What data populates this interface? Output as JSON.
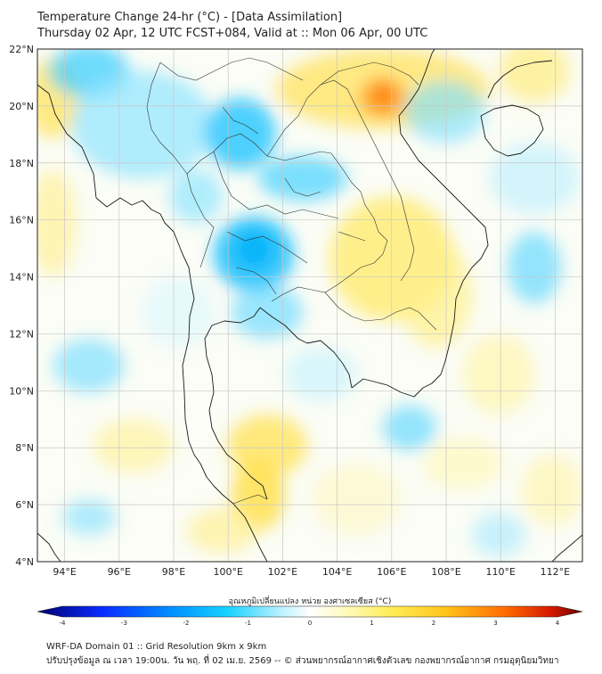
{
  "title": {
    "line1": "Temperature Change 24-hr (°C) - [Data Assimilation]",
    "line2": "Thursday 02 Apr, 12 UTC FCST+084, Valid at :: Mon 06 Apr, 00 UTC"
  },
  "map": {
    "lat_labels": [
      "22°N",
      "20°N",
      "18°N",
      "16°N",
      "14°N",
      "12°N",
      "10°N",
      "8°N",
      "6°N",
      "4°N"
    ],
    "lon_labels": [
      "94°E",
      "96°E",
      "98°E",
      "100°E",
      "102°E",
      "104°E",
      "106°E",
      "108°E",
      "110°E",
      "112°E"
    ],
    "lat_values": [
      22,
      20,
      18,
      16,
      14,
      12,
      10,
      8,
      6,
      4
    ],
    "lon_values": [
      94,
      96,
      98,
      100,
      102,
      104,
      106,
      108,
      110,
      112
    ],
    "lat_range": [
      4,
      22
    ],
    "lon_range": [
      93,
      113
    ]
  },
  "colorbar": {
    "label": "อุณหภูมิเปลี่ยนแปลง หน่วย องศาเซลเซียส (°C)",
    "ticks": [
      "-4",
      "-3",
      "-2",
      "-1",
      "0",
      "1",
      "2",
      "3",
      "4"
    ],
    "tick_values": [
      -4,
      -3,
      -2,
      -1,
      0,
      1,
      2,
      3,
      4
    ],
    "range": [
      -4,
      4
    ]
  },
  "footer": {
    "line1": "WRF-DA Domain 01 :: Grid Resolution 9km x 9km",
    "line2": "ปรับปรุงข้อมูล ณ เวลา 19:00น. วัน พฤ. ที่ 02 เม.ย. 2569 -- © ส่วนพยากรณ์อากาศเชิงตัวเลข กองพยากรณ์อากาศ กรมอุตุนิยมวิทยา"
  },
  "colors": {
    "cold_strong": "#00bfff",
    "cold_light": "#9fe6ff",
    "neutral": "#ffffff",
    "warm_light": "#fff5a0",
    "warm": "#ffdd33",
    "hot": "#ff7f0e",
    "coast": "#1a1a1a",
    "grid": "#c8c8c8"
  }
}
